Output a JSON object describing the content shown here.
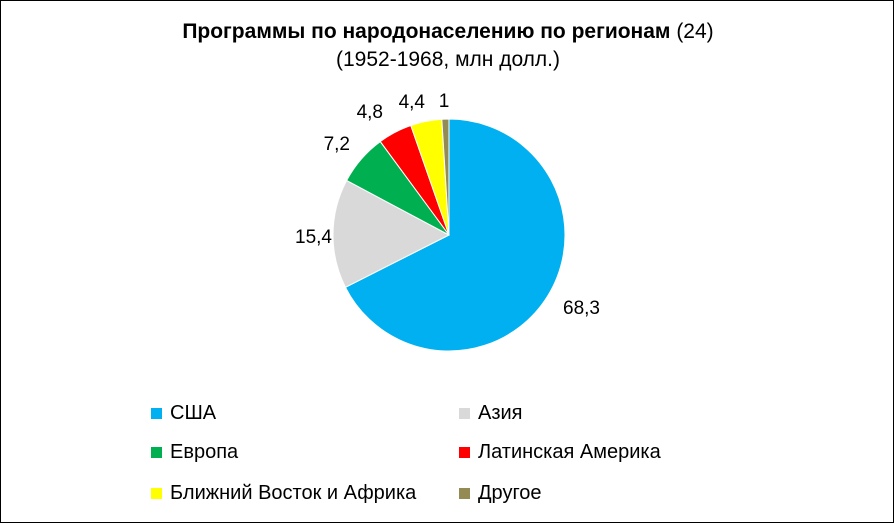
{
  "chart_data": {
    "type": "pie",
    "title": "Программы по народонаселению по регионам",
    "title_suffix": "(24)",
    "subtitle": "(1952-1968, млн долл.)",
    "categories": [
      "США",
      "Азия",
      "Европа",
      "Латинская Америка",
      "Ближний Восток и Африка",
      "Другое"
    ],
    "values": [
      68.3,
      15.4,
      7.2,
      4.8,
      4.4,
      1
    ],
    "value_labels": [
      "68,3",
      "15,4",
      "7,2",
      "4,8",
      "4,4",
      "1"
    ],
    "colors": [
      "#00B0F0",
      "#D9D9D9",
      "#00B050",
      "#FF0000",
      "#FFFF00",
      "#948A54"
    ],
    "legend_position": "bottom"
  }
}
